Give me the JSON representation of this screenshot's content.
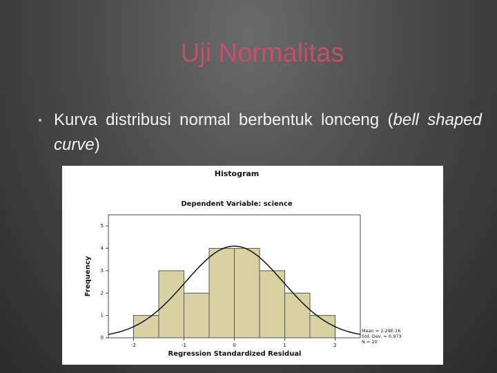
{
  "title": "Uji Normalitas",
  "bullet": {
    "text": "Kurva distribusi normal berbentuk lonceng (",
    "emphasis": "bell shaped curve",
    "end": ")"
  },
  "chart_data": {
    "type": "histogram",
    "title": "Histogram",
    "subtitle": "Dependent Variable: science",
    "x_label": "Regression Standardized Residual",
    "y_label": "Frequency",
    "bins": [
      -2,
      -1.5,
      -1,
      -0.5,
      0,
      0.5,
      1,
      1.5,
      2
    ],
    "values": [
      1,
      3,
      2,
      4,
      4,
      3,
      2,
      1
    ],
    "color": "#d8d2a2",
    "xlim": [
      -2.5,
      2.5
    ],
    "xticks": [
      -2,
      -1,
      0,
      1,
      2
    ],
    "ylim": [
      0,
      5.5
    ],
    "yticks": [
      0,
      1,
      2,
      3,
      4,
      5
    ],
    "stats": [
      {
        "value": 2.29e-16,
        "label": "Mean = 2.29E-16"
      },
      {
        "value": 0.973,
        "label": "Std. Dev. = 0.973"
      },
      {
        "value": 20,
        "label": "N = 20"
      }
    ]
  }
}
